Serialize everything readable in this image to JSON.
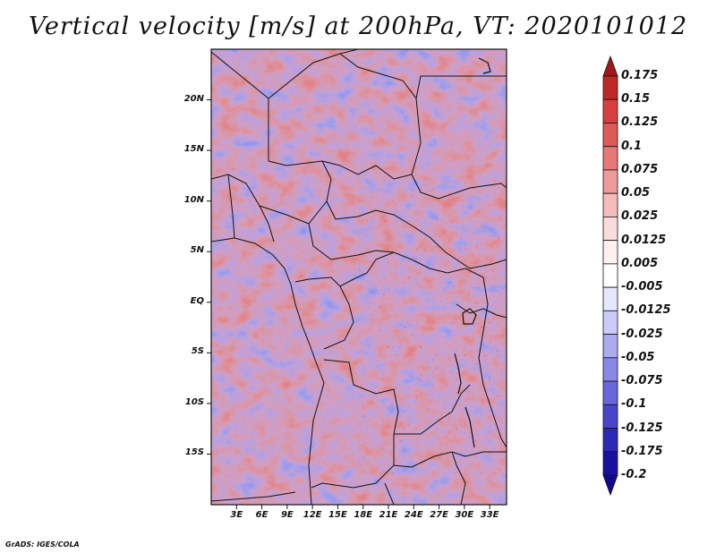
{
  "title": "Vertical velocity [m/s] at 200hPa, VT: 2020101012",
  "credit": "GrADS: IGES/COLA",
  "map": {
    "lat_labels": [
      "20N",
      "15N",
      "10N",
      "5N",
      "EQ",
      "5S",
      "10S",
      "15S"
    ],
    "lon_labels": [
      "3E",
      "6E",
      "9E",
      "12E",
      "15E",
      "18E",
      "21E",
      "24E",
      "27E",
      "30E",
      "33E"
    ],
    "lat_values": [
      20,
      15,
      10,
      5,
      0,
      -5,
      -10,
      -15
    ],
    "lon_values": [
      3,
      6,
      9,
      12,
      15,
      18,
      21,
      24,
      27,
      30,
      33
    ],
    "lat_range": [
      -20,
      25
    ],
    "lon_range": [
      0,
      35
    ]
  },
  "colorbar": {
    "labels": [
      "0.175",
      "0.15",
      "0.125",
      "0.1",
      "0.075",
      "0.05",
      "0.025",
      "0.0125",
      "0.005",
      "-0.005",
      "-0.0125",
      "-0.025",
      "-0.05",
      "-0.075",
      "-0.1",
      "-0.125",
      "-0.175",
      "-0.2"
    ],
    "colors": [
      "#a01818",
      "#c02828",
      "#d84040",
      "#e05a5a",
      "#e87878",
      "#f09a9a",
      "#f6bcbc",
      "#fadcdc",
      "#fdf0f0",
      "#ffffff",
      "#e6e6fc",
      "#cccaf8",
      "#ababf0",
      "#8a88e6",
      "#6a66dc",
      "#4a46cc",
      "#2c28b8",
      "#1a10a0",
      "#120890"
    ]
  }
}
